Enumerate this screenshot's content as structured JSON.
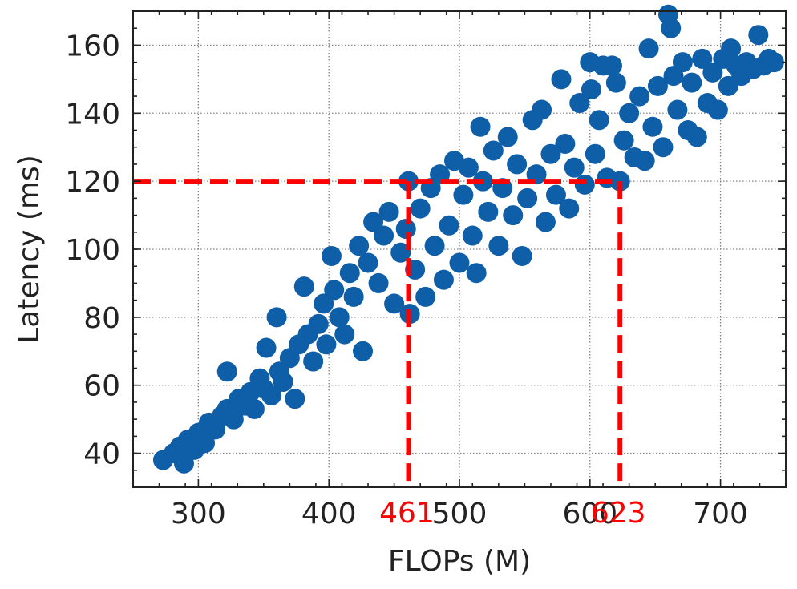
{
  "chart_data": {
    "type": "scatter",
    "xlabel": "FLOPs (M)",
    "ylabel": "Latency (ms)",
    "xlim": [
      250,
      750
    ],
    "ylim": [
      30,
      170
    ],
    "xticks": [
      300,
      400,
      500,
      600,
      700
    ],
    "yticks": [
      40,
      60,
      80,
      100,
      120,
      140,
      160
    ],
    "grid": true,
    "marker_color": "#0f5ea8",
    "reference_color": "#ff0000",
    "series": [
      {
        "points": [
          [
            273,
            38
          ],
          [
            281,
            40
          ],
          [
            286,
            42
          ],
          [
            289,
            37
          ],
          [
            292,
            44
          ],
          [
            297,
            41
          ],
          [
            300,
            46
          ],
          [
            305,
            43
          ],
          [
            308,
            49
          ],
          [
            313,
            47
          ],
          [
            318,
            51
          ],
          [
            322,
            53
          ],
          [
            322,
            64
          ],
          [
            327,
            50
          ],
          [
            331,
            56
          ],
          [
            336,
            54
          ],
          [
            340,
            58
          ],
          [
            343,
            53
          ],
          [
            347,
            62
          ],
          [
            350,
            59
          ],
          [
            352,
            71
          ],
          [
            356,
            57
          ],
          [
            360,
            80
          ],
          [
            362,
            64
          ],
          [
            365,
            61
          ],
          [
            370,
            68
          ],
          [
            374,
            56
          ],
          [
            377,
            72
          ],
          [
            381,
            89
          ],
          [
            384,
            75
          ],
          [
            388,
            67
          ],
          [
            392,
            78
          ],
          [
            396,
            84
          ],
          [
            398,
            72
          ],
          [
            402,
            98
          ],
          [
            404,
            88
          ],
          [
            408,
            80
          ],
          [
            412,
            75
          ],
          [
            416,
            93
          ],
          [
            419,
            86
          ],
          [
            423,
            101
          ],
          [
            426,
            70
          ],
          [
            430,
            96
          ],
          [
            434,
            108
          ],
          [
            438,
            90
          ],
          [
            442,
            104
          ],
          [
            446,
            111
          ],
          [
            450,
            84
          ],
          [
            455,
            99
          ],
          [
            459,
            106
          ],
          [
            461,
            120
          ],
          [
            462,
            81
          ],
          [
            466,
            94
          ],
          [
            470,
            112
          ],
          [
            474,
            86
          ],
          [
            478,
            118
          ],
          [
            481,
            101
          ],
          [
            485,
            122
          ],
          [
            488,
            91
          ],
          [
            492,
            107
          ],
          [
            496,
            126
          ],
          [
            500,
            96
          ],
          [
            503,
            116
          ],
          [
            507,
            124
          ],
          [
            510,
            104
          ],
          [
            513,
            93
          ],
          [
            516,
            136
          ],
          [
            518,
            120
          ],
          [
            522,
            111
          ],
          [
            526,
            129
          ],
          [
            530,
            101
          ],
          [
            533,
            118
          ],
          [
            537,
            133
          ],
          [
            541,
            110
          ],
          [
            544,
            125
          ],
          [
            548,
            98
          ],
          [
            552,
            115
          ],
          [
            556,
            138
          ],
          [
            559,
            122
          ],
          [
            563,
            141
          ],
          [
            566,
            108
          ],
          [
            570,
            128
          ],
          [
            574,
            116
          ],
          [
            578,
            150
          ],
          [
            581,
            131
          ],
          [
            584,
            112
          ],
          [
            588,
            124
          ],
          [
            592,
            143
          ],
          [
            596,
            119
          ],
          [
            600,
            155
          ],
          [
            601,
            147
          ],
          [
            604,
            128
          ],
          [
            607,
            138
          ],
          [
            610,
            154
          ],
          [
            613,
            121
          ],
          [
            617,
            154
          ],
          [
            620,
            149
          ],
          [
            623,
            120
          ],
          [
            626,
            132
          ],
          [
            630,
            140
          ],
          [
            634,
            127
          ],
          [
            638,
            145
          ],
          [
            642,
            126
          ],
          [
            645,
            159
          ],
          [
            648,
            136
          ],
          [
            652,
            148
          ],
          [
            656,
            130
          ],
          [
            660,
            169
          ],
          [
            662,
            165
          ],
          [
            664,
            151
          ],
          [
            667,
            141
          ],
          [
            671,
            155
          ],
          [
            675,
            135
          ],
          [
            678,
            149
          ],
          [
            682,
            133
          ],
          [
            686,
            156
          ],
          [
            690,
            143
          ],
          [
            694,
            152
          ],
          [
            698,
            141
          ],
          [
            702,
            156
          ],
          [
            706,
            148
          ],
          [
            708,
            159
          ],
          [
            712,
            154
          ],
          [
            716,
            151
          ],
          [
            720,
            155
          ],
          [
            725,
            153
          ],
          [
            729,
            163
          ],
          [
            733,
            154
          ],
          [
            737,
            156
          ],
          [
            741,
            155
          ]
        ]
      }
    ],
    "reference_lines": [
      {
        "type": "horizontal",
        "y": 120,
        "x_to": 623
      },
      {
        "type": "vertical",
        "x": 461,
        "y_to": 120,
        "label": "461"
      },
      {
        "type": "vertical",
        "x": 623,
        "y_to": 120,
        "label": "623"
      }
    ]
  }
}
